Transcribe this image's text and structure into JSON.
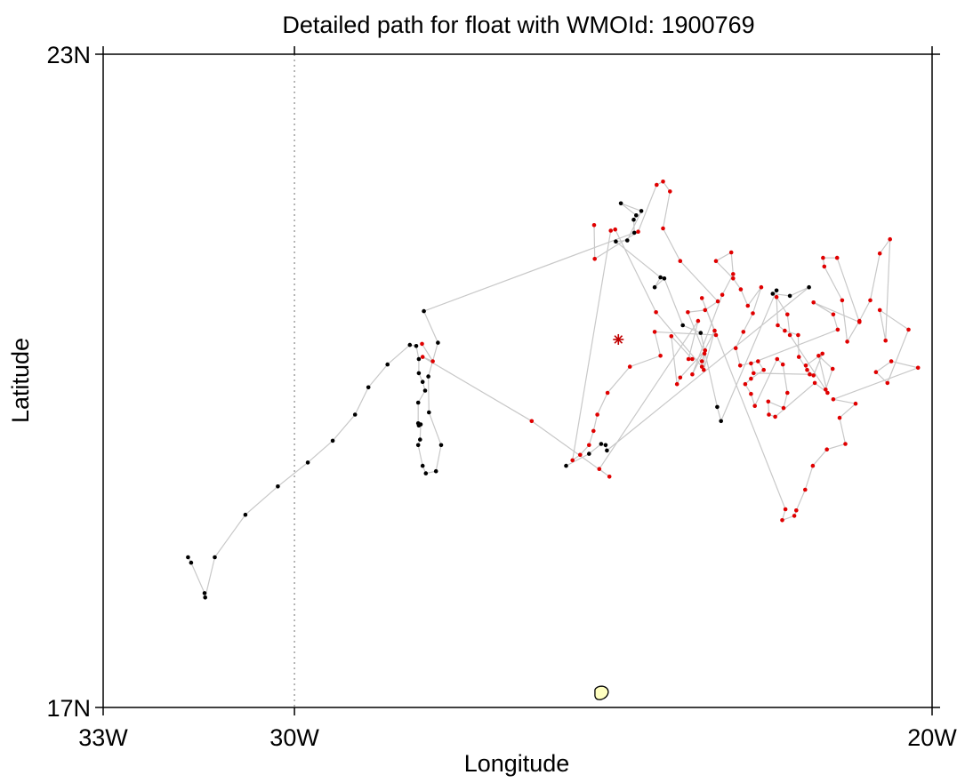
{
  "chart_data": {
    "type": "scatter",
    "title": "Detailed path for float with WMOId: 1900769",
    "xlabel": "Longitude",
    "ylabel": "Latitude",
    "xlim": [
      -33,
      -20
    ],
    "ylim": [
      17,
      23
    ],
    "x_ticks": [
      {
        "value": -33,
        "label": "33W"
      },
      {
        "value": -30,
        "label": "30W"
      },
      {
        "value": -20,
        "label": "20W"
      }
    ],
    "y_ticks": [
      {
        "value": 17,
        "label": "17N"
      },
      {
        "value": 23,
        "label": "23N"
      }
    ],
    "gridlines": [
      {
        "axis": "x",
        "value": -30,
        "style": "dotted"
      }
    ],
    "series": [
      {
        "color": "#000000",
        "points": [
          [
            -31.67,
            18.38
          ],
          [
            -31.62,
            18.33
          ],
          [
            -31.41,
            18.05
          ],
          [
            -31.4,
            18.01
          ],
          [
            -31.25,
            18.38
          ],
          [
            -30.77,
            18.77
          ],
          [
            -30.26,
            19.03
          ],
          [
            -29.79,
            19.25
          ],
          [
            -29.4,
            19.45
          ],
          [
            -29.05,
            19.69
          ],
          [
            -28.84,
            19.94
          ],
          [
            -28.54,
            20.15
          ],
          [
            -28.19,
            20.33
          ],
          [
            -28.09,
            20.32
          ],
          [
            -28.05,
            20.2
          ],
          [
            -28.05,
            20.07
          ],
          [
            -27.99,
            19.99
          ],
          [
            -27.95,
            19.91
          ],
          [
            -28.06,
            19.8
          ],
          [
            -28.06,
            19.61
          ],
          [
            -28.05,
            19.59
          ],
          [
            -28.02,
            19.6
          ],
          [
            -28.03,
            19.46
          ],
          [
            -28.06,
            19.41
          ],
          [
            -27.99,
            19.22
          ],
          [
            -27.94,
            19.15
          ],
          [
            -27.78,
            19.17
          ],
          [
            -27.7,
            19.41
          ],
          [
            -27.89,
            19.71
          ],
          [
            -27.9,
            20.04
          ],
          [
            -27.75,
            20.35
          ],
          [
            -27.97,
            20.64
          ],
          [
            -24.67,
            21.36
          ],
          [
            -24.68,
            21.48
          ],
          [
            -24.64,
            21.52
          ],
          [
            -24.88,
            21.63
          ],
          [
            -24.56,
            21.56
          ],
          [
            -24.78,
            21.29
          ],
          [
            -24.96,
            21.28
          ],
          [
            -24.26,
            20.95
          ],
          [
            -24.35,
            20.86
          ],
          [
            -24.2,
            20.94
          ],
          [
            -23.91,
            20.51
          ],
          [
            -23.63,
            20.44
          ],
          [
            -23.37,
            19.76
          ],
          [
            -23.31,
            19.63
          ],
          [
            -22.44,
            20.83
          ],
          [
            -22.5,
            20.8
          ],
          [
            -22.23,
            20.78
          ],
          [
            -21.93,
            20.86
          ],
          [
            -25.1,
            19.36
          ],
          [
            -25.12,
            19.41
          ],
          [
            -25.19,
            19.42
          ],
          [
            -25.38,
            19.33
          ],
          [
            -25.74,
            19.22
          ]
        ]
      },
      {
        "color": "#e00000",
        "points": [
          [
            -25.3,
            21.43
          ],
          [
            -25.29,
            21.12
          ],
          [
            -24.61,
            21.37
          ],
          [
            -24.32,
            21.8
          ],
          [
            -24.22,
            21.83
          ],
          [
            -24.11,
            21.74
          ],
          [
            -24.22,
            21.4
          ],
          [
            -23.95,
            21.1
          ],
          [
            -23.36,
            20.73
          ],
          [
            -23.56,
            20.65
          ],
          [
            -23.83,
            20.63
          ],
          [
            -23.57,
            20.25
          ],
          [
            -23.58,
            20.1
          ],
          [
            -23.41,
            20.46
          ],
          [
            -23.76,
            20.06
          ],
          [
            -23.29,
            20.79
          ],
          [
            -23.12,
            20.98
          ],
          [
            -23.15,
            21.18
          ],
          [
            -23.39,
            21.1
          ],
          [
            -23.12,
            20.94
          ],
          [
            -23.0,
            20.84
          ],
          [
            -22.89,
            20.69
          ],
          [
            -22.68,
            20.86
          ],
          [
            -22.81,
            20.62
          ],
          [
            -22.96,
            20.45
          ],
          [
            -23.08,
            20.3
          ],
          [
            -23.01,
            20.14
          ],
          [
            -22.73,
            20.18
          ],
          [
            -22.64,
            20.1
          ],
          [
            -22.84,
            20.02
          ],
          [
            -22.93,
            19.97
          ],
          [
            -22.84,
            19.88
          ],
          [
            -22.78,
            19.77
          ],
          [
            -22.43,
            20.2
          ],
          [
            -22.34,
            20.15
          ],
          [
            -22.27,
            19.89
          ],
          [
            -22.33,
            19.75
          ],
          [
            -22.57,
            19.81
          ],
          [
            -22.56,
            19.69
          ],
          [
            -22.46,
            19.67
          ],
          [
            -21.84,
            19.98
          ],
          [
            -21.64,
            19.89
          ],
          [
            -21.78,
            20.23
          ],
          [
            -21.56,
            20.11
          ],
          [
            -21.67,
            19.92
          ],
          [
            -22.23,
            20.42
          ],
          [
            -22.27,
            20.61
          ],
          [
            -22.44,
            20.77
          ],
          [
            -22.42,
            20.51
          ],
          [
            -22.31,
            20.46
          ],
          [
            -22.1,
            20.42
          ],
          [
            -22.09,
            20.22
          ],
          [
            -21.96,
            20.1
          ],
          [
            -21.86,
            20.05
          ],
          [
            -21.72,
            20.25
          ],
          [
            -21.98,
            20.14
          ],
          [
            -21.92,
            20.06
          ],
          [
            -22.8,
            20.07
          ],
          [
            -22.84,
            20.16
          ],
          [
            -21.48,
            20.47
          ],
          [
            -21.55,
            20.61
          ],
          [
            -21.86,
            20.72
          ],
          [
            -21.14,
            20.54
          ],
          [
            -21.49,
            21.13
          ],
          [
            -21.71,
            21.13
          ],
          [
            -21.69,
            21.05
          ],
          [
            -21.41,
            20.74
          ],
          [
            -21.33,
            20.36
          ],
          [
            -21.14,
            20.55
          ],
          [
            -20.97,
            20.74
          ],
          [
            -20.82,
            21.17
          ],
          [
            -20.66,
            21.3
          ],
          [
            -20.73,
            20.37
          ],
          [
            -20.82,
            20.65
          ],
          [
            -20.37,
            20.47
          ],
          [
            -20.7,
            19.98
          ],
          [
            -20.88,
            20.08
          ],
          [
            -20.64,
            20.18
          ],
          [
            -20.22,
            20.12
          ],
          [
            -21.55,
            19.83
          ],
          [
            -21.2,
            19.79
          ],
          [
            -21.45,
            19.66
          ],
          [
            -21.36,
            19.42
          ],
          [
            -21.65,
            19.37
          ],
          [
            -21.87,
            19.22
          ],
          [
            -21.99,
            19.0
          ],
          [
            -22.13,
            18.81
          ],
          [
            -22.16,
            18.76
          ],
          [
            -22.35,
            18.72
          ],
          [
            -22.3,
            18.82
          ],
          [
            -23.61,
            20.76
          ],
          [
            -23.39,
            20.42
          ],
          [
            -24.35,
            20.45
          ],
          [
            -24.26,
            20.23
          ],
          [
            -24.74,
            20.13
          ],
          [
            -25.09,
            19.89
          ],
          [
            -25.25,
            19.69
          ],
          [
            -25.31,
            19.54
          ],
          [
            -25.38,
            19.41
          ],
          [
            -25.52,
            19.32
          ],
          [
            -25.64,
            19.27
          ],
          [
            -25.04,
            21.38
          ],
          [
            -24.97,
            21.39
          ],
          [
            -24.33,
            20.63
          ],
          [
            -23.61,
            20.13
          ],
          [
            -23.61,
            20.18
          ],
          [
            -23.56,
            20.28
          ],
          [
            -23.95,
            20.03
          ],
          [
            -24.0,
            19.97
          ],
          [
            -24.09,
            20.41
          ],
          [
            -23.76,
            20.2
          ],
          [
            -23.82,
            20.2
          ],
          [
            -23.67,
            20.55
          ],
          [
            -25.22,
            19.19
          ],
          [
            -25.06,
            19.12
          ],
          [
            -26.28,
            19.63
          ],
          [
            -27.99,
            20.22
          ],
          [
            -27.83,
            20.18
          ],
          [
            -28.0,
            20.34
          ]
        ]
      }
    ],
    "marker": {
      "value": [
        -24.92,
        20.38
      ],
      "color": "#c00000",
      "shape": "asterisk"
    },
    "island": {
      "center": [
        -25.19,
        17.13
      ],
      "fill": "#ffffc0"
    }
  }
}
